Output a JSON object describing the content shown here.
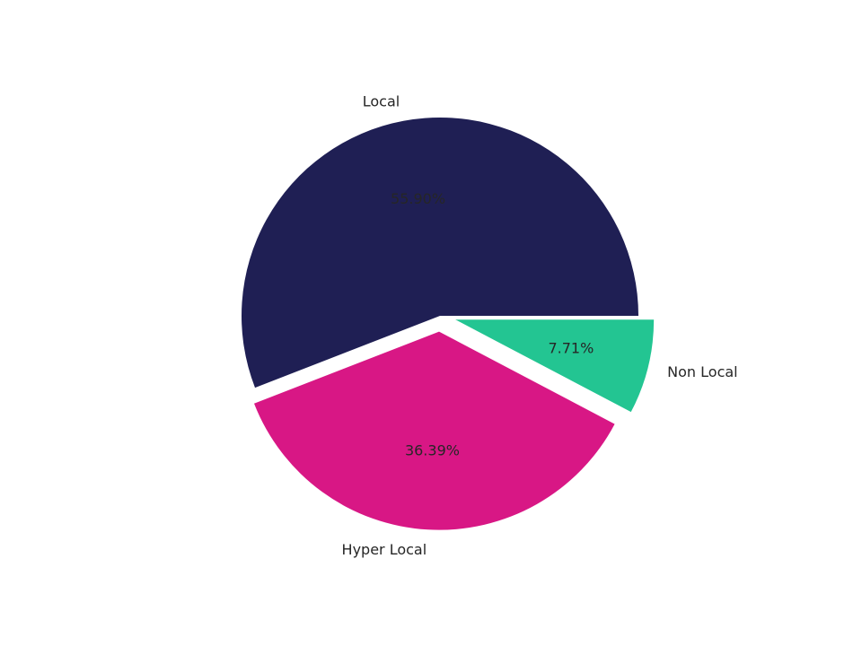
{
  "chart_data": {
    "type": "pie",
    "title": "",
    "slices": [
      {
        "label": "Local",
        "value": 55.9,
        "pct_label": "55.90%",
        "color": "#1f1f54",
        "exploded": false
      },
      {
        "label": "Hyper Local",
        "value": 36.39,
        "pct_label": "36.39%",
        "color": "#d81785",
        "exploded": true
      },
      {
        "label": "Non Local",
        "value": 7.71,
        "pct_label": "7.71%",
        "color": "#23c592",
        "exploded": true
      }
    ],
    "start_angle_deg": 0,
    "direction": "counterclockwise",
    "legend": "none"
  }
}
